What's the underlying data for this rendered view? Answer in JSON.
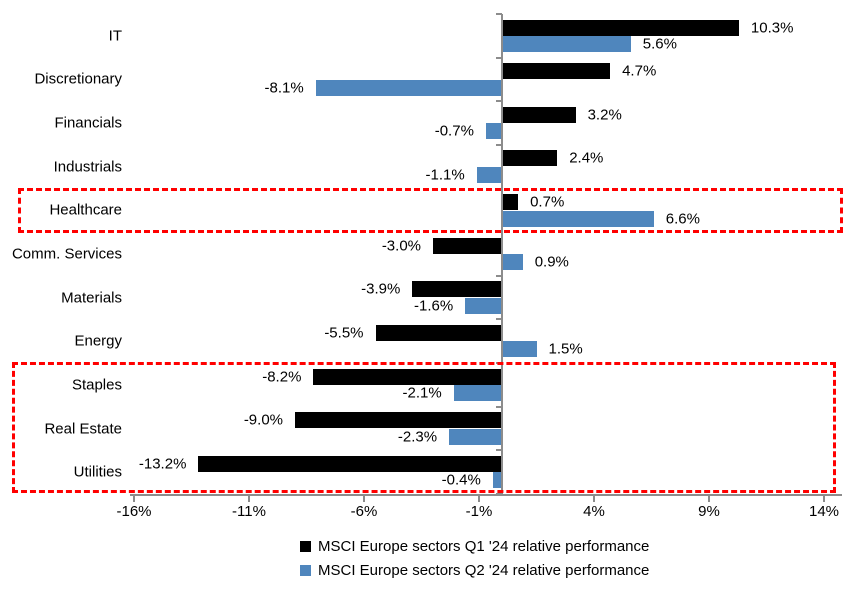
{
  "chart_data": {
    "type": "bar",
    "orientation": "horizontal",
    "title": "",
    "categories": [
      "IT",
      "Discretionary",
      "Financials",
      "Industrials",
      "Healthcare",
      "Comm. Services",
      "Materials",
      "Energy",
      "Staples",
      "Real Estate",
      "Utilities"
    ],
    "series": [
      {
        "name": "MSCI Europe sectors Q1 '24 relative performance",
        "color": "#000000",
        "values": [
          10.3,
          4.7,
          3.2,
          2.4,
          0.7,
          -3.0,
          -3.9,
          -5.5,
          -8.2,
          -9.0,
          -13.2
        ]
      },
      {
        "name": "MSCI Europe sectors Q2 '24 relative performance",
        "color": "#4f86bd",
        "values": [
          5.6,
          -8.1,
          -0.7,
          -1.1,
          6.6,
          0.9,
          -1.6,
          1.5,
          -2.1,
          -2.3,
          -0.4
        ]
      }
    ],
    "value_label_suffix": "%",
    "value_label_decimals": 1,
    "x_ticks": [
      "-16%",
      "-11%",
      "-6%",
      "-1%",
      "4%",
      "9%",
      "14%"
    ],
    "x_tick_values": [
      -16,
      -11,
      -6,
      -1,
      4,
      9,
      14
    ],
    "xlim": [
      -16.2,
      14.8
    ],
    "grid": false,
    "legend_position": "bottom",
    "axis_color": "#8c8c8c",
    "highlight_color": "#ff0000",
    "highlight_boxes": [
      {
        "categories": [
          "Healthcare"
        ]
      },
      {
        "categories": [
          "Staples",
          "Real Estate",
          "Utilities"
        ]
      }
    ]
  }
}
